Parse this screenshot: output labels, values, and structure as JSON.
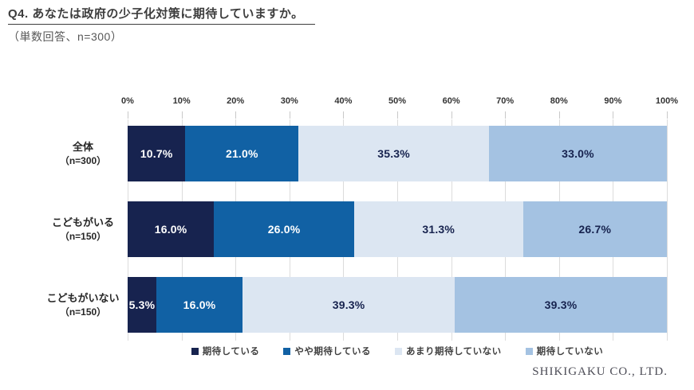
{
  "title": "Q4. あなたは政府の少子化対策に期待していますか。",
  "subtitle": "（単数回答、n=300）",
  "footer": "SHIKIGAKU CO., LTD.",
  "colors": {
    "strong_expect": "#17234f",
    "somewhat_expect": "#1161a4",
    "not_much_expect": "#dce6f2",
    "not_expect": "#a4c2e2",
    "gridline": "#dcdcdc",
    "axis_text": "#333333",
    "title_text": "#3d3d3d"
  },
  "chart_data": {
    "type": "bar",
    "stacked": true,
    "orientation": "horizontal",
    "title": "Q4. あなたは政府の少子化対策に期待していますか。",
    "subtitle": "（単数回答、n=300）",
    "categories": [
      {
        "label": "全体",
        "n": "（n=300）"
      },
      {
        "label": "こどもがいる",
        "n": "（n=150）"
      },
      {
        "label": "こどもがいない",
        "n": "（n=150）"
      }
    ],
    "series": [
      {
        "name": "期待している",
        "color": "#17234f",
        "text_color": "#ffffff",
        "values": [
          10.7,
          16.0,
          5.3
        ]
      },
      {
        "name": "やや期待している",
        "color": "#1161a4",
        "text_color": "#ffffff",
        "values": [
          21.0,
          26.0,
          16.0
        ]
      },
      {
        "name": "あまり期待していない",
        "color": "#dce6f2",
        "text_color": "#17234f",
        "values": [
          35.3,
          31.3,
          39.3
        ]
      },
      {
        "name": "期待していない",
        "color": "#a4c2e2",
        "text_color": "#17234f",
        "values": [
          33.0,
          26.7,
          39.3
        ]
      }
    ],
    "value_suffix": "%",
    "value_decimals": 1,
    "x_ticks": [
      "0%",
      "10%",
      "20%",
      "30%",
      "40%",
      "50%",
      "60%",
      "70%",
      "80%",
      "90%",
      "100%"
    ],
    "xlim": [
      0,
      100
    ],
    "grid": true,
    "legend_position": "bottom"
  }
}
